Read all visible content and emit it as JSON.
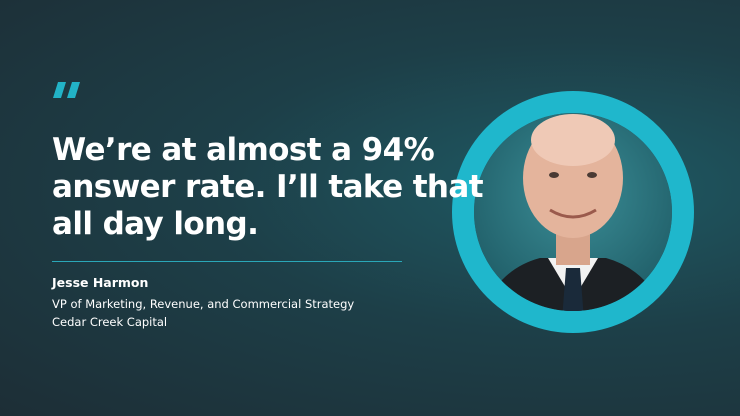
{
  "testimonial": {
    "quote_lines": [
      "We’re at almost a 94%",
      "answer rate. I’ll take that",
      "all day long."
    ],
    "author": {
      "name": "Jesse Harmon",
      "role": "VP of Marketing, Revenue, and Commercial Strategy",
      "company": "Cedar Creek Capital"
    }
  }
}
